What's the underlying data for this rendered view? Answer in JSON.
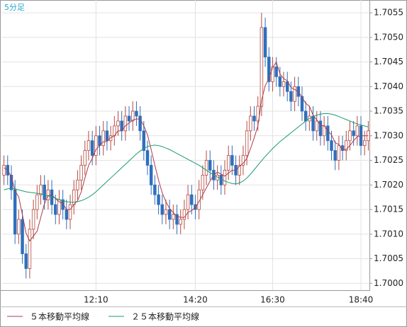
{
  "chart_data": {
    "type": "candlestick",
    "title": "5分足",
    "categories": [
      null,
      null,
      null,
      null,
      null,
      null,
      null,
      null,
      null,
      null,
      null,
      null,
      null,
      null,
      null,
      null,
      null,
      null,
      null,
      null,
      null,
      null,
      null,
      null,
      null,
      "12:10",
      null,
      null,
      null,
      null,
      null,
      null,
      null,
      null,
      null,
      null,
      null,
      null,
      null,
      null,
      null,
      null,
      null,
      null,
      null,
      null,
      null,
      null,
      null,
      null,
      null,
      null,
      "14:20",
      null,
      null,
      null,
      null,
      null,
      null,
      null,
      null,
      null,
      null,
      null,
      null,
      null,
      null,
      null,
      null,
      null,
      null,
      null,
      null,
      "16:30",
      null,
      null,
      null,
      null,
      null,
      null,
      null,
      null,
      null,
      null,
      null,
      null,
      null,
      null,
      null,
      null,
      null,
      null,
      null,
      null,
      null,
      null,
      null,
      "18:40",
      null,
      null
    ],
    "open": [
      1.7022,
      1.7024,
      1.7022,
      1.7019,
      1.701,
      1.7013,
      1.7006,
      1.7003,
      1.7011,
      1.7015,
      1.7018,
      1.702,
      1.7017,
      1.7019,
      1.7016,
      1.7014,
      1.7017,
      1.7015,
      1.7013,
      1.7016,
      1.7019,
      1.7021,
      1.7024,
      1.7027,
      1.7029,
      1.7026,
      1.703,
      1.7028,
      1.7031,
      1.7029,
      1.703,
      1.7032,
      1.7033,
      1.7031,
      1.7034,
      1.7033,
      1.7035,
      1.7034,
      1.7031,
      1.7027,
      1.7024,
      1.702,
      1.7018,
      1.7016,
      1.7014,
      1.7015,
      1.7013,
      1.7014,
      1.7012,
      1.7013,
      1.7015,
      1.7018,
      1.7016,
      1.7015,
      1.7019,
      1.7022,
      1.7025,
      1.7023,
      1.7021,
      1.7022,
      1.702,
      1.7023,
      1.7026,
      1.7024,
      1.7022,
      1.7024,
      1.7026,
      1.7031,
      1.7034,
      1.7033,
      1.7036,
      1.7052,
      1.7046,
      1.7041,
      1.7044,
      1.7042,
      1.704,
      1.7041,
      1.7039,
      1.7037,
      1.704,
      1.7038,
      1.7035,
      1.7033,
      1.7034,
      1.7031,
      1.7033,
      1.703,
      1.7032,
      1.7029,
      1.7027,
      1.7025,
      1.7028,
      1.7027,
      1.7029,
      1.7031,
      1.703,
      1.7032,
      1.7028,
      1.7029
    ],
    "high": [
      1.7026,
      1.7026,
      1.7024,
      1.7021,
      1.7015,
      1.7015,
      1.7008,
      1.7013,
      1.7017,
      1.702,
      1.7022,
      1.7022,
      1.7021,
      1.7021,
      1.7018,
      1.7019,
      1.7019,
      1.7017,
      1.7018,
      1.7021,
      1.7023,
      1.7026,
      1.7029,
      1.7031,
      1.7031,
      1.7032,
      1.7032,
      1.7033,
      1.7033,
      1.7032,
      1.7034,
      1.7035,
      1.7035,
      1.7036,
      1.7036,
      1.7037,
      1.7037,
      1.7036,
      1.7033,
      1.7029,
      1.7026,
      1.7022,
      1.702,
      1.7018,
      1.7017,
      1.7017,
      1.7016,
      1.7016,
      1.7015,
      1.7017,
      1.702,
      1.702,
      1.7018,
      1.7021,
      1.7024,
      1.7027,
      1.7027,
      1.7025,
      1.7024,
      1.7024,
      1.7025,
      1.7028,
      1.7028,
      1.7026,
      1.7026,
      1.7028,
      1.7033,
      1.7036,
      1.7036,
      1.7038,
      1.7055,
      1.7054,
      1.7048,
      1.7046,
      1.7046,
      1.7044,
      1.7043,
      1.7043,
      1.7041,
      1.7042,
      1.7042,
      1.704,
      1.7037,
      1.7036,
      1.7036,
      1.7035,
      1.7035,
      1.7034,
      1.7034,
      1.7031,
      1.7029,
      1.703,
      1.703,
      1.7031,
      1.7033,
      1.7033,
      1.7034,
      1.7034,
      1.7031,
      1.7033
    ],
    "low": [
      1.702,
      1.702,
      1.7017,
      1.7008,
      1.7008,
      1.7004,
      1.7001,
      1.7001,
      1.7009,
      1.7013,
      1.7016,
      1.7015,
      1.7015,
      1.7014,
      1.7012,
      1.7012,
      1.7013,
      1.7011,
      1.7011,
      1.7014,
      1.7017,
      1.7019,
      1.7022,
      1.7025,
      1.7024,
      1.7024,
      1.7026,
      1.7026,
      1.7027,
      1.7027,
      1.7028,
      1.703,
      1.7029,
      1.7029,
      1.7031,
      1.7031,
      1.7032,
      1.7029,
      1.7025,
      1.7022,
      1.7018,
      1.7016,
      1.7014,
      1.7012,
      1.7012,
      1.7011,
      1.7011,
      1.701,
      1.701,
      1.7011,
      1.7013,
      1.7014,
      1.7013,
      1.7013,
      1.7017,
      1.702,
      1.7021,
      1.7019,
      1.7019,
      1.7018,
      1.7018,
      1.7021,
      1.7022,
      1.702,
      1.702,
      1.7022,
      1.7024,
      1.7029,
      1.7031,
      1.7031,
      1.7034,
      1.7044,
      1.7039,
      1.7039,
      1.704,
      1.7038,
      1.7038,
      1.7037,
      1.7035,
      1.7035,
      1.7036,
      1.7033,
      1.7031,
      1.7031,
      1.7029,
      1.7029,
      1.7028,
      1.7028,
      1.7027,
      1.7025,
      1.7023,
      1.7023,
      1.7025,
      1.7025,
      1.7027,
      1.7028,
      1.7028,
      1.7026,
      1.7026,
      1.7027
    ],
    "close": [
      1.7024,
      1.7022,
      1.7019,
      1.701,
      1.7013,
      1.7006,
      1.7003,
      1.7011,
      1.7015,
      1.7018,
      1.702,
      1.7017,
      1.7019,
      1.7016,
      1.7014,
      1.7017,
      1.7015,
      1.7013,
      1.7016,
      1.7019,
      1.7021,
      1.7024,
      1.7027,
      1.7029,
      1.7026,
      1.703,
      1.7028,
      1.7031,
      1.7029,
      1.703,
      1.7032,
      1.7033,
      1.7031,
      1.7034,
      1.7033,
      1.7035,
      1.7034,
      1.7031,
      1.7027,
      1.7024,
      1.702,
      1.7018,
      1.7016,
      1.7014,
      1.7015,
      1.7013,
      1.7014,
      1.7012,
      1.7013,
      1.7015,
      1.7018,
      1.7016,
      1.7015,
      1.7019,
      1.7022,
      1.7025,
      1.7023,
      1.7021,
      1.7022,
      1.702,
      1.7023,
      1.7026,
      1.7024,
      1.7022,
      1.7024,
      1.7026,
      1.7031,
      1.7034,
      1.7033,
      1.7036,
      1.7052,
      1.7046,
      1.7041,
      1.7044,
      1.7042,
      1.704,
      1.7041,
      1.7039,
      1.7037,
      1.704,
      1.7038,
      1.7035,
      1.7033,
      1.7034,
      1.7031,
      1.7033,
      1.703,
      1.7032,
      1.7029,
      1.7027,
      1.7025,
      1.7028,
      1.7027,
      1.7029,
      1.7031,
      1.703,
      1.7032,
      1.7028,
      1.7029,
      1.7031
    ],
    "up_color": "#b5493f",
    "down_color": "#2f6fbd",
    "series": [
      {
        "name": "５本移動平均線",
        "color": "#b03a48",
        "values": [
          1.70235,
          1.7023,
          1.70217,
          1.70188,
          1.70176,
          1.7014,
          1.70102,
          1.70086,
          1.70096,
          1.70106,
          1.70134,
          1.70162,
          1.70178,
          1.7018,
          1.70172,
          1.70166,
          1.70162,
          1.7015,
          1.7015,
          1.7016,
          1.70168,
          1.70186,
          1.70214,
          1.7024,
          1.70254,
          1.70272,
          1.7028,
          1.70288,
          1.70288,
          1.70296,
          1.703,
          1.7031,
          1.7031,
          1.7032,
          1.70326,
          1.70332,
          1.70334,
          1.70334,
          1.7032,
          1.70302,
          1.70272,
          1.7024,
          1.7021,
          1.70184,
          1.70166,
          1.70152,
          1.70144,
          1.70136,
          1.70134,
          1.70134,
          1.70144,
          1.70148,
          1.70154,
          1.70166,
          1.7018,
          1.70194,
          1.70208,
          1.7022,
          1.70226,
          1.70222,
          1.70218,
          1.70224,
          1.7023,
          1.7023,
          1.70238,
          1.70244,
          1.70254,
          1.70274,
          1.70296,
          1.7032,
          1.70372,
          1.70402,
          1.70416,
          1.70438,
          1.7045,
          1.70426,
          1.70416,
          1.70412,
          1.70398,
          1.70394,
          1.7039,
          1.70378,
          1.70366,
          1.7036,
          1.70342,
          1.70332,
          1.70322,
          1.7032,
          1.7031,
          1.70302,
          1.70286,
          1.70282,
          1.70272,
          1.70272,
          1.7028,
          1.7029,
          1.70298,
          1.703,
          1.703,
          1.703
        ]
      },
      {
        "name": "２５本移動平均線",
        "color": "#1c9c70",
        "values": [
          1.7019,
          1.70192,
          1.70193,
          1.70192,
          1.7019,
          1.70188,
          1.70186,
          1.70185,
          1.70184,
          1.70183,
          1.70182,
          1.7018,
          1.70178,
          1.70176,
          1.70173,
          1.7017,
          1.70168,
          1.70166,
          1.70165,
          1.70165,
          1.70166,
          1.70168,
          1.70171,
          1.70175,
          1.7018,
          1.70186,
          1.70193,
          1.702,
          1.70207,
          1.70214,
          1.70221,
          1.70228,
          1.70235,
          1.70242,
          1.70249,
          1.70256,
          1.70263,
          1.70269,
          1.70274,
          1.70278,
          1.7028,
          1.70281,
          1.7028,
          1.70278,
          1.70275,
          1.70272,
          1.70268,
          1.70264,
          1.7026,
          1.70256,
          1.70252,
          1.70248,
          1.70244,
          1.7024,
          1.70235,
          1.7023,
          1.70225,
          1.7022,
          1.70216,
          1.70212,
          1.70208,
          1.70205,
          1.70203,
          1.70202,
          1.70204,
          1.70208,
          1.70214,
          1.70222,
          1.70231,
          1.7024,
          1.70249,
          1.70258,
          1.70266,
          1.70274,
          1.70281,
          1.70288,
          1.70294,
          1.703,
          1.70306,
          1.70312,
          1.70318,
          1.70324,
          1.7033,
          1.70335,
          1.70339,
          1.70342,
          1.70344,
          1.70345,
          1.70345,
          1.70344,
          1.70342,
          1.70339,
          1.70336,
          1.70333,
          1.7033,
          1.70327,
          1.70324,
          1.70322,
          1.7032,
          1.70318
        ]
      }
    ],
    "ylim": [
      1.69986,
      1.70576
    ],
    "yticks": [
      {
        "value": 1.7,
        "label": "1.7000"
      },
      {
        "value": 1.7005,
        "label": "1.7005"
      },
      {
        "value": 1.701,
        "label": "1.7010"
      },
      {
        "value": 1.7015,
        "label": "1.7015"
      },
      {
        "value": 1.702,
        "label": "1.7020"
      },
      {
        "value": 1.7025,
        "label": "1.7025"
      },
      {
        "value": 1.703,
        "label": "1.7030"
      },
      {
        "value": 1.7035,
        "label": "1.7035"
      },
      {
        "value": 1.704,
        "label": "1.7040"
      },
      {
        "value": 1.7045,
        "label": "1.7045"
      },
      {
        "value": 1.705,
        "label": "1.7050"
      },
      {
        "value": 1.7055,
        "label": "1.7055"
      }
    ],
    "grid": true
  }
}
